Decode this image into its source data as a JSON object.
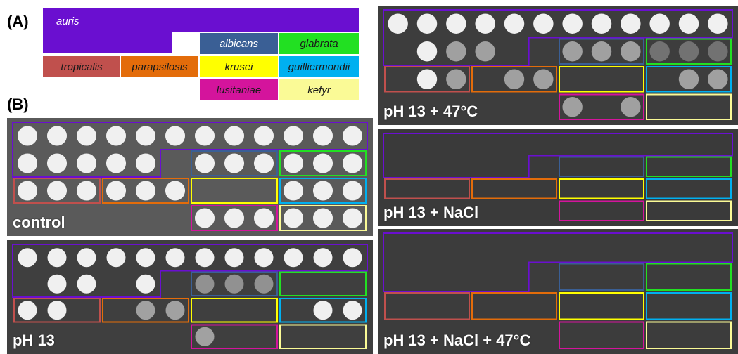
{
  "panel_labels": {
    "a": "(A)",
    "b": "(B)"
  },
  "legend": {
    "auris": "auris",
    "tropicalis": "tropicalis",
    "parapsilosis": "parapsilosis",
    "albicans": "albicans",
    "glabrata": "glabrata",
    "krusei": "krusei",
    "guilliermondii": "guilliermondii",
    "lusitaniae": "lusitaniae",
    "kefyr": "kefyr"
  },
  "species_colors": {
    "auris": "#6a0fd0",
    "tropicalis": "#c0504d",
    "parapsilosis": "#e36c0a",
    "albicans": "#3a5f95",
    "glabrata": "#22e022",
    "krusei": "#ffff00",
    "guilliermondii": "#00b0f0",
    "lusitaniae": "#d4149c",
    "kefyr": "#fafa96"
  },
  "plates": {
    "control": {
      "label": "control",
      "growth": [
        [
          1,
          1,
          1,
          1,
          1,
          1,
          1,
          1,
          1,
          1,
          1,
          1
        ],
        [
          1,
          1,
          1,
          1,
          1,
          0,
          1,
          1,
          1,
          1,
          1,
          1
        ],
        [
          1,
          1,
          1,
          1,
          1,
          1,
          0,
          0,
          0,
          1,
          1,
          1
        ],
        [
          0,
          0,
          0,
          0,
          0,
          0,
          1,
          1,
          1,
          1,
          1,
          1
        ]
      ]
    },
    "ph13": {
      "label": "pH 13",
      "growth": [
        [
          1,
          1,
          1,
          1,
          1,
          1,
          1,
          1,
          1,
          1,
          1,
          1
        ],
        [
          0,
          1,
          1,
          0,
          1,
          0,
          0.5,
          0.5,
          0.5,
          0,
          0,
          0
        ],
        [
          1,
          1,
          0,
          0,
          0.6,
          0.6,
          0,
          0,
          0,
          0,
          1,
          1
        ],
        [
          0,
          0,
          0,
          0,
          0,
          0,
          0.6,
          0,
          0,
          0,
          0,
          0
        ]
      ]
    },
    "ph13_47": {
      "label": "pH 13 + 47°C",
      "growth": [
        [
          1,
          1,
          1,
          1,
          1,
          1,
          1,
          1,
          1,
          1,
          1,
          1
        ],
        [
          0,
          1,
          0.6,
          0.6,
          0,
          0,
          0.6,
          0.6,
          0.6,
          0.3,
          0.3,
          0.3
        ],
        [
          0,
          1,
          0.6,
          0,
          0.6,
          0.6,
          0,
          0,
          0,
          0,
          0.6,
          0.6
        ],
        [
          0,
          0,
          0,
          0,
          0,
          0,
          0.6,
          0,
          0.6,
          0,
          0,
          0
        ]
      ]
    },
    "ph13_nacl": {
      "label": "pH 13 + NaCl",
      "growth": [
        [
          0,
          0,
          0,
          0,
          0,
          0,
          0,
          0,
          0,
          0,
          0,
          0
        ],
        [
          0,
          0,
          0,
          0,
          0,
          0,
          0,
          0,
          0,
          0,
          0,
          0
        ],
        [
          0,
          0,
          0,
          0,
          0,
          0,
          0,
          0,
          0,
          0,
          0,
          0
        ],
        [
          0,
          0,
          0,
          0,
          0,
          0,
          0,
          0,
          0,
          0,
          0,
          0
        ]
      ]
    },
    "ph13_nacl_47": {
      "label": "pH 13 + NaCl + 47°C",
      "growth": [
        [
          0,
          0,
          0,
          0,
          0,
          0,
          0,
          0,
          0,
          0,
          0,
          0
        ],
        [
          0,
          0,
          0,
          0,
          0,
          0,
          0,
          0,
          0,
          0,
          0,
          0
        ],
        [
          0,
          0,
          0,
          0,
          0,
          0,
          0,
          0,
          0,
          0,
          0,
          0
        ],
        [
          0,
          0,
          0,
          0,
          0,
          0,
          0,
          0,
          0,
          0,
          0,
          0
        ]
      ]
    }
  }
}
